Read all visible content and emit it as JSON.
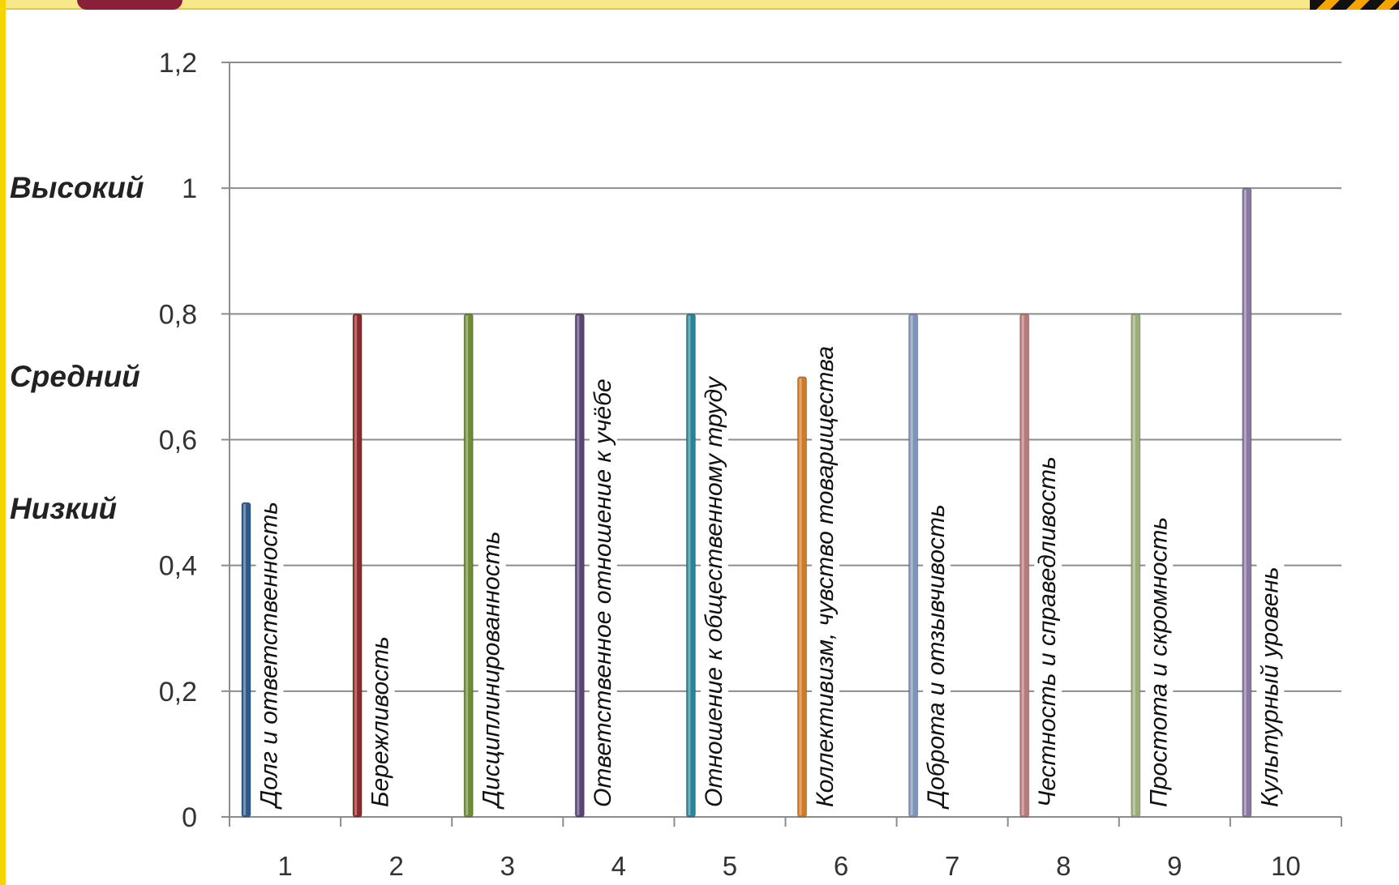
{
  "chart_data": {
    "type": "bar",
    "title": "",
    "xlabel": "",
    "ylabel": "",
    "ylim": [
      0,
      1.2
    ],
    "y_ticks": [
      "0",
      "0,2",
      "0,4",
      "0,6",
      "0,8",
      "1",
      "1,2"
    ],
    "categories": [
      "1",
      "2",
      "3",
      "4",
      "5",
      "6",
      "7",
      "8",
      "9",
      "10"
    ],
    "values": [
      0.5,
      0.8,
      0.8,
      0.8,
      0.8,
      0.7,
      0.8,
      0.8,
      0.8,
      1.0
    ],
    "bar_labels": [
      "Долг и ответственность",
      "Бережливость",
      "Дисциплинированность",
      "Ответственное отношение к учёбе",
      "Отношение к общественному труду",
      "Коллективизм, чувство товарищества",
      "Доброта и отзывчивость",
      "Честность и справедливость",
      "Простота и скромность",
      "Культурный уровень"
    ],
    "colors": [
      "#2f5b8c",
      "#8c2a2a",
      "#6d8a34",
      "#5a4476",
      "#2a8498",
      "#d07a24",
      "#7f93b8",
      "#b87a7a",
      "#9aad7a",
      "#8778a0"
    ],
    "level_labels": [
      {
        "text": "Высокий",
        "value": 1.0
      },
      {
        "text": "Средний",
        "value": 0.7
      },
      {
        "text": "Низкий",
        "value": 0.49
      }
    ],
    "grid": true,
    "legend": "none"
  }
}
